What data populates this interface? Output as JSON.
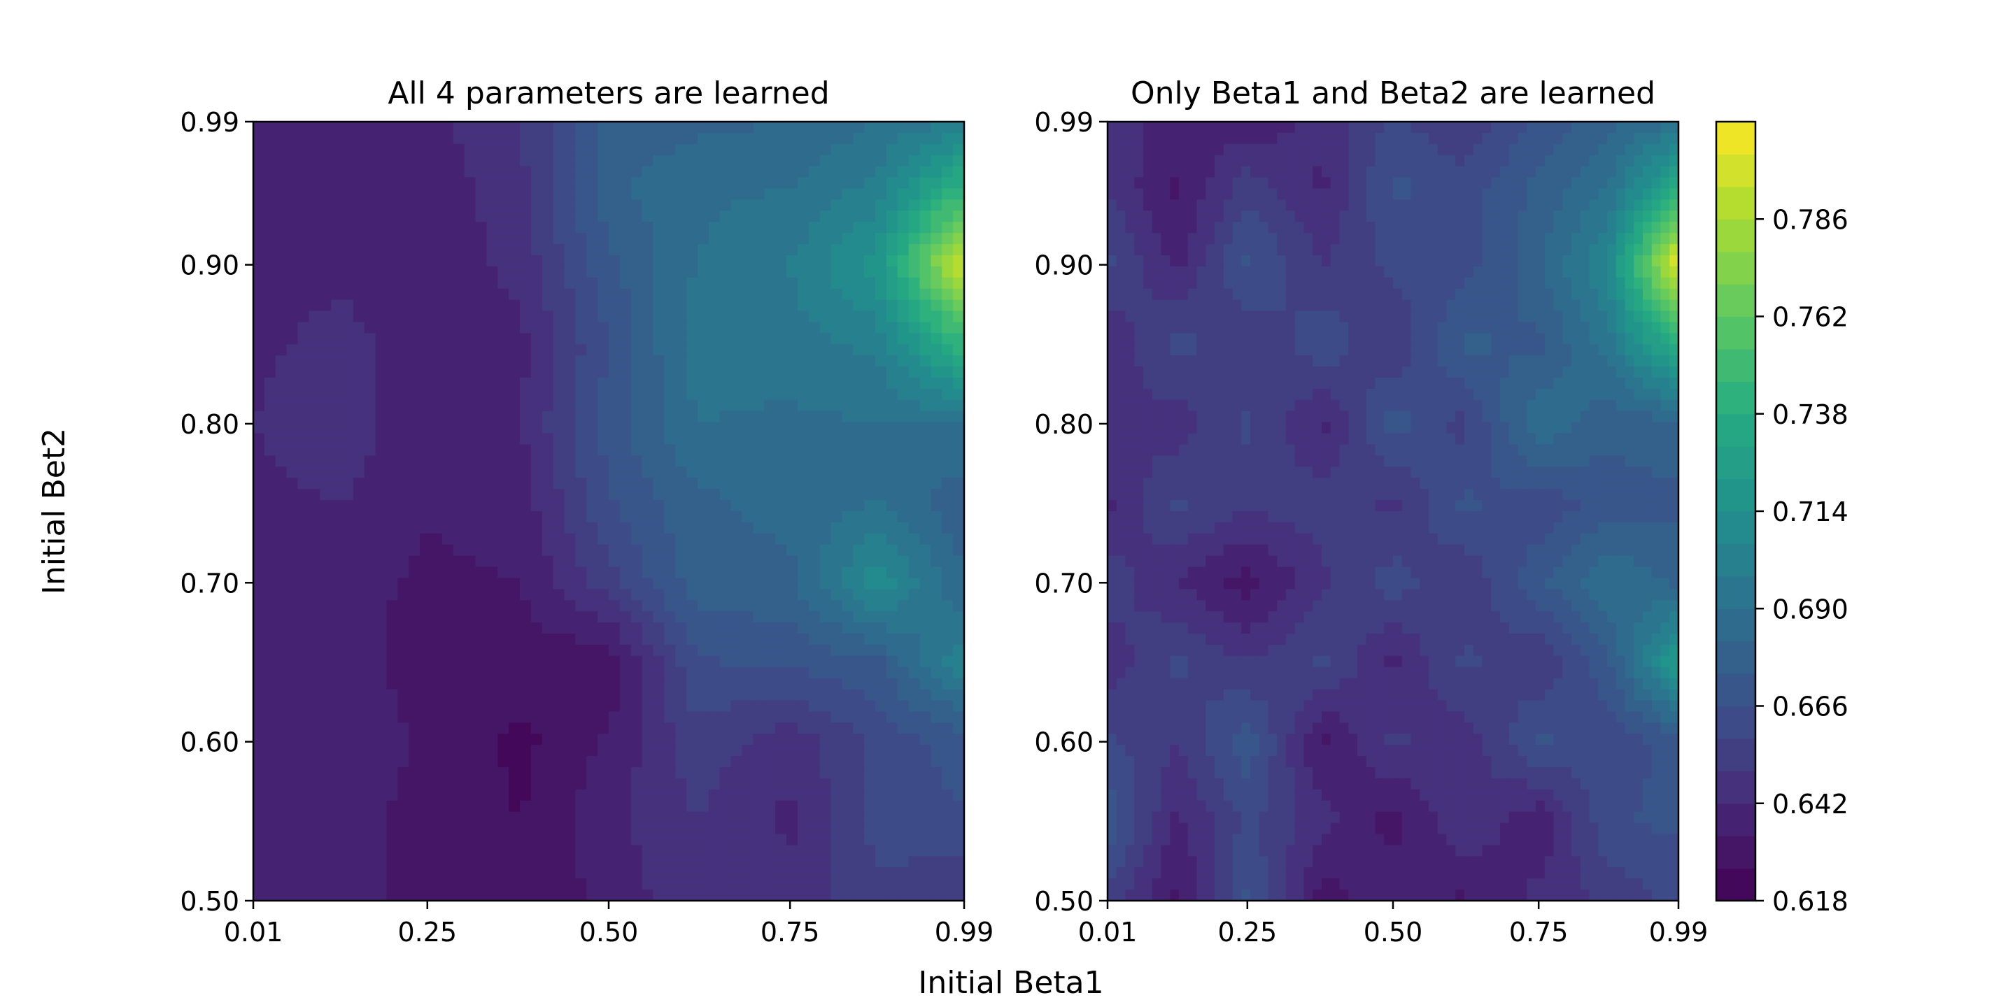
{
  "chart_data": [
    {
      "type": "heatmap",
      "subtype": "filled-contour",
      "title": "All 4 parameters are learned",
      "xlabel": "Initial Beta1",
      "ylabel": "Initial Bet2",
      "x_range": [
        0.01,
        0.99
      ],
      "y_range": [
        0.5,
        0.99
      ],
      "x_ticks": [
        "0.01",
        "0.25",
        "0.50",
        "0.75",
        "0.99"
      ],
      "y_ticks": [
        "0.50",
        "0.60",
        "0.70",
        "0.80",
        "0.90",
        "0.99"
      ],
      "x": [
        0.01,
        0.13,
        0.25,
        0.38,
        0.5,
        0.62,
        0.75,
        0.87,
        0.99
      ],
      "y": [
        0.5,
        0.55,
        0.6,
        0.65,
        0.7,
        0.75,
        0.8,
        0.85,
        0.9,
        0.95,
        0.99
      ],
      "z": [
        [
          0.64,
          0.636,
          0.632,
          0.628,
          0.636,
          0.648,
          0.646,
          0.655,
          0.65
        ],
        [
          0.641,
          0.638,
          0.63,
          0.626,
          0.64,
          0.65,
          0.64,
          0.662,
          0.665
        ],
        [
          0.642,
          0.642,
          0.632,
          0.624,
          0.635,
          0.655,
          0.645,
          0.66,
          0.67
        ],
        [
          0.64,
          0.64,
          0.628,
          0.63,
          0.628,
          0.665,
          0.668,
          0.672,
          0.705
        ],
        [
          0.642,
          0.638,
          0.632,
          0.634,
          0.655,
          0.678,
          0.68,
          0.712,
          0.682
        ],
        [
          0.64,
          0.642,
          0.635,
          0.638,
          0.665,
          0.68,
          0.685,
          0.69,
          0.676
        ],
        [
          0.642,
          0.648,
          0.635,
          0.642,
          0.67,
          0.69,
          0.688,
          0.69,
          0.69
        ],
        [
          0.64,
          0.645,
          0.637,
          0.64,
          0.666,
          0.694,
          0.695,
          0.7,
          0.745
        ],
        [
          0.638,
          0.64,
          0.636,
          0.645,
          0.672,
          0.69,
          0.698,
          0.718,
          0.8
        ],
        [
          0.637,
          0.638,
          0.636,
          0.648,
          0.68,
          0.688,
          0.69,
          0.7,
          0.742
        ],
        [
          0.64,
          0.636,
          0.64,
          0.65,
          0.676,
          0.68,
          0.682,
          0.69,
          0.7
        ]
      ]
    },
    {
      "type": "heatmap",
      "subtype": "filled-contour",
      "title": "Only Beta1 and Beta2 are learned",
      "xlabel": "Initial Beta1",
      "ylabel": "",
      "x_range": [
        0.01,
        0.99
      ],
      "y_range": [
        0.5,
        0.99
      ],
      "x_ticks": [
        "0.01",
        "0.25",
        "0.50",
        "0.75",
        "0.99"
      ],
      "y_ticks": [
        "0.50",
        "0.60",
        "0.70",
        "0.80",
        "0.90",
        "0.99"
      ],
      "x": [
        0.01,
        0.13,
        0.25,
        0.38,
        0.5,
        0.62,
        0.75,
        0.87,
        0.99
      ],
      "y": [
        0.5,
        0.55,
        0.6,
        0.65,
        0.7,
        0.75,
        0.8,
        0.85,
        0.9,
        0.95,
        0.99
      ],
      "z": [
        [
          0.655,
          0.632,
          0.668,
          0.63,
          0.64,
          0.632,
          0.645,
          0.652,
          0.66
        ],
        [
          0.672,
          0.64,
          0.66,
          0.645,
          0.63,
          0.65,
          0.635,
          0.665,
          0.668
        ],
        [
          0.66,
          0.65,
          0.672,
          0.632,
          0.652,
          0.644,
          0.668,
          0.66,
          0.67
        ],
        [
          0.645,
          0.66,
          0.65,
          0.66,
          0.64,
          0.66,
          0.65,
          0.672,
          0.725
        ],
        [
          0.655,
          0.642,
          0.63,
          0.648,
          0.662,
          0.65,
          0.672,
          0.69,
          0.68
        ],
        [
          0.64,
          0.66,
          0.652,
          0.655,
          0.648,
          0.668,
          0.66,
          0.67,
          0.672
        ],
        [
          0.65,
          0.645,
          0.66,
          0.64,
          0.67,
          0.655,
          0.69,
          0.676,
          0.68
        ],
        [
          0.642,
          0.662,
          0.65,
          0.664,
          0.65,
          0.676,
          0.672,
          0.695,
          0.74
        ],
        [
          0.66,
          0.64,
          0.668,
          0.65,
          0.66,
          0.662,
          0.68,
          0.708,
          0.805
        ],
        [
          0.65,
          0.632,
          0.655,
          0.64,
          0.668,
          0.662,
          0.676,
          0.69,
          0.735
        ],
        [
          0.645,
          0.64,
          0.636,
          0.645,
          0.66,
          0.65,
          0.668,
          0.68,
          0.69
        ]
      ]
    }
  ],
  "colorbar": {
    "vmin": 0.618,
    "vmax": 0.81,
    "ticks": [
      "0.618",
      "0.642",
      "0.666",
      "0.690",
      "0.714",
      "0.738",
      "0.762",
      "0.786"
    ],
    "colormap": "viridis"
  },
  "shared_xlabel": "Initial Beta1",
  "shared_ylabel": "Initial Bet2"
}
